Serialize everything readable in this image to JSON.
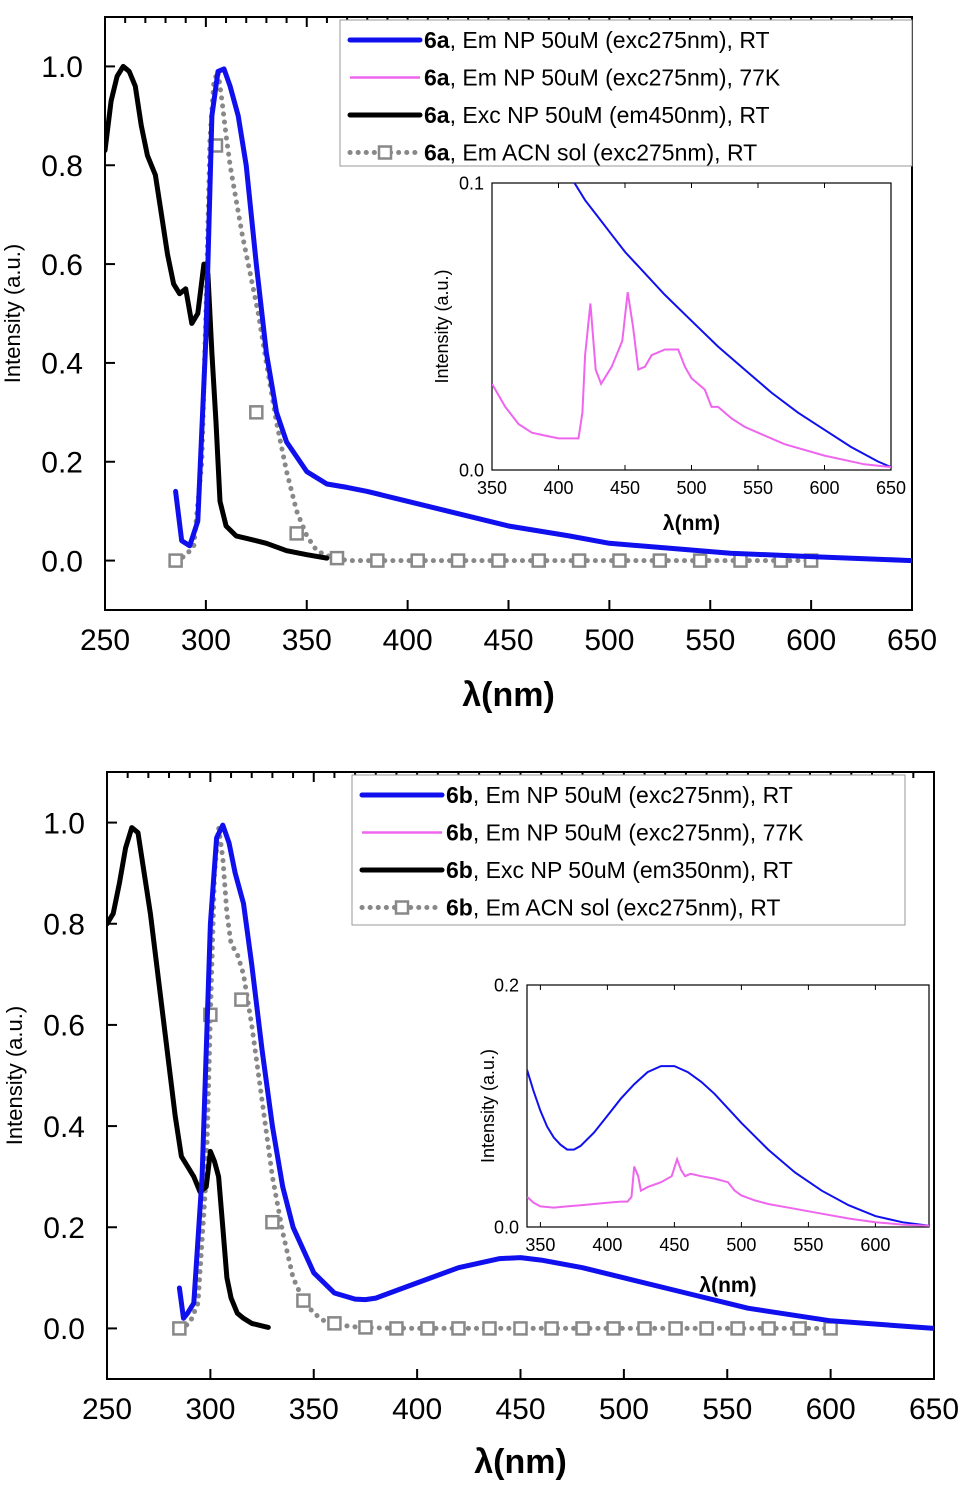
{
  "chart_data": [
    {
      "type": "line",
      "xlabel": "λ(nm)",
      "ylabel": "Intensity (a.u.)",
      "xlim": [
        250,
        650
      ],
      "ylim": [
        -0.1,
        1.1
      ],
      "xticks": [
        250,
        300,
        350,
        400,
        450,
        500,
        550,
        600,
        650
      ],
      "yticks": [
        0.0,
        0.2,
        0.4,
        0.6,
        0.8,
        1.0
      ],
      "legend_position": "top-right",
      "series": [
        {
          "id": "em_rt",
          "compound": "6a",
          "name": ", Em NP 50uM (exc275nm), RT",
          "color": "#1010ee",
          "style": "solid-thick",
          "x": [
            285,
            288,
            292,
            296,
            300,
            303,
            306,
            309,
            312,
            316,
            320,
            325,
            330,
            335,
            340,
            350,
            360,
            370,
            380,
            400,
            420,
            450,
            480,
            500,
            530,
            560,
            600,
            650
          ],
          "y": [
            0.14,
            0.04,
            0.03,
            0.08,
            0.45,
            0.9,
            0.99,
            0.995,
            0.96,
            0.9,
            0.8,
            0.6,
            0.42,
            0.3,
            0.24,
            0.18,
            0.155,
            0.148,
            0.14,
            0.12,
            0.1,
            0.07,
            0.05,
            0.035,
            0.025,
            0.015,
            0.008,
            0.0
          ]
        },
        {
          "id": "em_77k",
          "compound": "6a",
          "name": ", Em NP 50uM (exc275nm), 77K",
          "color": "#ee66ee",
          "style": "solid-thin",
          "x": [],
          "y": []
        },
        {
          "id": "exc_rt",
          "compound": "6a",
          "name": ", Exc NP 50uM (em450nm), RT",
          "color": "#000000",
          "style": "solid-thick",
          "x": [
            250,
            253,
            256,
            259,
            262,
            265,
            268,
            271,
            275,
            278,
            281,
            284,
            287,
            290,
            293,
            296,
            299,
            301,
            303,
            305,
            307,
            310,
            315,
            320,
            330,
            340,
            350,
            360
          ],
          "y": [
            0.83,
            0.93,
            0.98,
            1.0,
            0.99,
            0.96,
            0.88,
            0.82,
            0.78,
            0.7,
            0.62,
            0.56,
            0.54,
            0.55,
            0.48,
            0.5,
            0.6,
            0.58,
            0.42,
            0.28,
            0.12,
            0.07,
            0.05,
            0.045,
            0.035,
            0.02,
            0.012,
            0.005
          ]
        },
        {
          "id": "acn",
          "compound": "6a",
          "name": ", Em ACN sol (exc275nm), RT",
          "color": "#888888",
          "style": "dotted-square",
          "x": [
            285,
            290,
            294,
            298,
            300,
            302,
            304,
            306,
            308,
            310,
            312,
            315,
            318,
            322,
            326,
            330,
            335,
            340,
            345,
            350,
            355,
            360,
            365,
            370,
            380,
            400,
            450,
            500,
            550,
            600
          ],
          "y": [
            0.0,
            0.01,
            0.03,
            0.2,
            0.5,
            0.85,
            0.97,
            0.99,
            0.93,
            0.86,
            0.8,
            0.73,
            0.66,
            0.58,
            0.5,
            0.4,
            0.28,
            0.18,
            0.1,
            0.05,
            0.02,
            0.01,
            0.005,
            0.0,
            0.0,
            0.0,
            0.0,
            0.0,
            0.0,
            0.0
          ],
          "marker_x": [
            285,
            305,
            325,
            345,
            365,
            385,
            405,
            425,
            445,
            465,
            485,
            505,
            525,
            545,
            565,
            585,
            600
          ],
          "marker_y": [
            0.0,
            0.84,
            0.3,
            0.055,
            0.005,
            0.0,
            0.0,
            0.0,
            0.0,
            0.0,
            0.0,
            0.0,
            0.0,
            0.0,
            0.0,
            0.0,
            0.0
          ]
        }
      ],
      "inset": {
        "xlabel": "λ(nm)",
        "ylabel": "Intensity (a.u.)",
        "xlim": [
          350,
          650
        ],
        "ylim": [
          0.0,
          0.1
        ],
        "xticks": [
          350,
          400,
          450,
          500,
          550,
          600,
          650
        ],
        "yticks": [
          0.0,
          0.1
        ],
        "ytick_labels": [
          "0.0",
          "0.1"
        ],
        "series": [
          {
            "id": "em_rt",
            "color": "#1010ee",
            "x": [
              412,
              420,
              430,
              440,
              450,
              460,
              480,
              500,
              520,
              540,
              560,
              580,
              600,
              620,
              640,
              650
            ],
            "y": [
              0.1,
              0.094,
              0.088,
              0.082,
              0.076,
              0.071,
              0.061,
              0.052,
              0.043,
              0.035,
              0.027,
              0.02,
              0.014,
              0.008,
              0.003,
              0.001
            ]
          },
          {
            "id": "em_77k",
            "color": "#ee66ee",
            "x": [
              350,
              360,
              370,
              380,
              390,
              400,
              410,
              415,
              418,
              420,
              424,
              428,
              432,
              440,
              448,
              452,
              456,
              460,
              465,
              470,
              480,
              490,
              495,
              500,
              510,
              515,
              520,
              525,
              530,
              540,
              550,
              570,
              600,
              630,
              650
            ],
            "y": [
              0.03,
              0.022,
              0.016,
              0.013,
              0.012,
              0.011,
              0.011,
              0.011,
              0.02,
              0.04,
              0.058,
              0.035,
              0.03,
              0.036,
              0.045,
              0.062,
              0.05,
              0.035,
              0.036,
              0.04,
              0.042,
              0.042,
              0.036,
              0.032,
              0.028,
              0.022,
              0.022,
              0.02,
              0.018,
              0.015,
              0.013,
              0.009,
              0.005,
              0.002,
              0.001
            ]
          }
        ]
      }
    },
    {
      "type": "line",
      "xlabel": "λ(nm)",
      "ylabel": "Intensity (a.u.)",
      "xlim": [
        250,
        650
      ],
      "ylim": [
        -0.1,
        1.1
      ],
      "xticks": [
        250,
        300,
        350,
        400,
        450,
        500,
        550,
        600,
        650
      ],
      "yticks": [
        0.0,
        0.2,
        0.4,
        0.6,
        0.8,
        1.0
      ],
      "legend_position": "top-right",
      "series": [
        {
          "id": "em_rt",
          "compound": "6b",
          "name": ", Em NP 50uM (exc275nm), RT",
          "color": "#1010ee",
          "style": "solid-thick",
          "x": [
            285,
            287,
            289,
            292,
            296,
            300,
            303,
            306,
            309,
            312,
            316,
            320,
            325,
            330,
            335,
            340,
            350,
            360,
            370,
            375,
            380,
            390,
            400,
            420,
            440,
            450,
            460,
            480,
            500,
            530,
            560,
            600,
            650
          ],
          "y": [
            0.08,
            0.02,
            0.03,
            0.05,
            0.3,
            0.8,
            0.97,
            0.995,
            0.96,
            0.9,
            0.84,
            0.72,
            0.55,
            0.4,
            0.28,
            0.2,
            0.11,
            0.07,
            0.058,
            0.057,
            0.06,
            0.075,
            0.09,
            0.12,
            0.138,
            0.14,
            0.135,
            0.12,
            0.1,
            0.07,
            0.04,
            0.015,
            0.0
          ]
        },
        {
          "id": "em_77k",
          "compound": "6b",
          "name": ", Em NP 50uM (exc275nm), 77K",
          "color": "#ee66ee",
          "style": "solid-thin",
          "x": [],
          "y": []
        },
        {
          "id": "exc_rt",
          "compound": "6b",
          "name": ", Exc NP 50uM (em350nm), RT",
          "color": "#000000",
          "style": "solid-thick",
          "x": [
            250,
            253,
            256,
            259,
            262,
            265,
            268,
            271,
            274,
            277,
            280,
            283,
            286,
            289,
            292,
            295,
            298,
            300,
            302,
            304,
            306,
            308,
            310,
            313,
            316,
            320,
            325,
            328
          ],
          "y": [
            0.8,
            0.82,
            0.88,
            0.95,
            0.99,
            0.98,
            0.9,
            0.82,
            0.72,
            0.62,
            0.52,
            0.42,
            0.34,
            0.32,
            0.3,
            0.27,
            0.28,
            0.35,
            0.33,
            0.3,
            0.2,
            0.1,
            0.06,
            0.03,
            0.02,
            0.01,
            0.005,
            0.002
          ]
        },
        {
          "id": "acn",
          "compound": "6b",
          "name": ", Em ACN sol (exc275nm), RT",
          "color": "#888888",
          "style": "dotted-square",
          "x": [
            285,
            290,
            294,
            298,
            300,
            302,
            304,
            306,
            308,
            310,
            313,
            316,
            320,
            325,
            330,
            335,
            340,
            345,
            350,
            355,
            360,
            370,
            380,
            400,
            450,
            500,
            550,
            600
          ],
          "y": [
            0.0,
            0.01,
            0.05,
            0.3,
            0.62,
            0.9,
            0.99,
            0.93,
            0.82,
            0.76,
            0.74,
            0.7,
            0.6,
            0.45,
            0.3,
            0.19,
            0.1,
            0.055,
            0.03,
            0.015,
            0.008,
            0.003,
            0.001,
            0.0,
            0.0,
            0.0,
            0.0,
            0.0
          ],
          "marker_x": [
            285,
            300,
            315,
            330,
            345,
            360,
            375,
            390,
            405,
            420,
            435,
            450,
            465,
            480,
            495,
            510,
            525,
            540,
            555,
            570,
            585,
            600
          ],
          "marker_y": [
            0.0,
            0.62,
            0.65,
            0.21,
            0.055,
            0.01,
            0.002,
            0.0,
            0.0,
            0.0,
            0.0,
            0.0,
            0.0,
            0.0,
            0.0,
            0.0,
            0.0,
            0.0,
            0.0,
            0.0,
            0.0,
            0.0
          ]
        }
      ],
      "inset": {
        "xlabel": "λ(nm)",
        "ylabel": "Intensity (a.u.)",
        "xlim": [
          340,
          640
        ],
        "ylim": [
          0.0,
          0.2
        ],
        "xticks": [
          350,
          400,
          450,
          500,
          550,
          600
        ],
        "yticks": [
          0.0,
          0.2
        ],
        "ytick_labels": [
          "0.0",
          "0.2"
        ],
        "series": [
          {
            "id": "em_rt",
            "color": "#1010ee",
            "x": [
              340,
              345,
              350,
              355,
              360,
              365,
              370,
              375,
              380,
              390,
              400,
              410,
              420,
              430,
              440,
              450,
              460,
              470,
              480,
              490,
              500,
              520,
              540,
              560,
              580,
              600,
              620,
              640
            ],
            "y": [
              0.13,
              0.112,
              0.096,
              0.083,
              0.074,
              0.068,
              0.064,
              0.064,
              0.067,
              0.078,
              0.092,
              0.106,
              0.118,
              0.128,
              0.133,
              0.133,
              0.128,
              0.12,
              0.11,
              0.098,
              0.086,
              0.064,
              0.045,
              0.03,
              0.018,
              0.009,
              0.004,
              0.001
            ]
          },
          {
            "id": "em_77k",
            "color": "#ee66ee",
            "x": [
              340,
              345,
              350,
              360,
              370,
              380,
              390,
              400,
              410,
              415,
              418,
              420,
              423,
              425,
              430,
              440,
              448,
              452,
              455,
              458,
              462,
              470,
              480,
              490,
              495,
              500,
              510,
              520,
              540,
              560,
              580,
              600,
              620,
              640
            ],
            "y": [
              0.025,
              0.02,
              0.017,
              0.016,
              0.017,
              0.018,
              0.019,
              0.02,
              0.021,
              0.021,
              0.025,
              0.05,
              0.042,
              0.03,
              0.033,
              0.037,
              0.042,
              0.056,
              0.047,
              0.042,
              0.044,
              0.042,
              0.04,
              0.037,
              0.03,
              0.026,
              0.022,
              0.019,
              0.015,
              0.011,
              0.007,
              0.004,
              0.002,
              0.001
            ]
          }
        ]
      }
    }
  ]
}
